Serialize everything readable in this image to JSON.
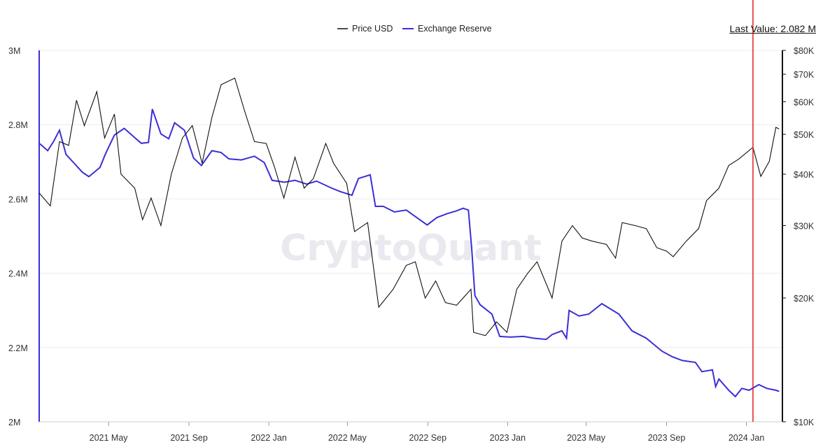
{
  "last_value_text": "Last Value: 2.082 M",
  "watermark": "CryptoQuant",
  "chart_data": {
    "type": "line",
    "x_ticks": [
      "2021 May",
      "2021 Sep",
      "2022 Jan",
      "2022 May",
      "2022 Sep",
      "2023 Jan",
      "2023 May",
      "2023 Sep",
      "2024 Jan"
    ],
    "y_left": {
      "ticks": [
        "3M",
        "2.8M",
        "2.6M",
        "2.4M",
        "2.2M",
        "2M"
      ],
      "range": [
        2000000,
        3000000
      ]
    },
    "y_right": {
      "ticks": [
        "$80K",
        "$70K",
        "$60K",
        "$50K",
        "$40K",
        "$30K",
        "$20K",
        "$10K"
      ],
      "scale": "log",
      "range": [
        10000,
        80000
      ]
    },
    "x_range": [
      "2021-01-15",
      "2024-02-25"
    ],
    "marker_date": "2024-01-11",
    "grid": "horizontal",
    "legend_position": "top-center",
    "colors": {
      "price": "#111111",
      "reserve": "#3b2fd6",
      "marker": "#e02020",
      "grid": "#ececec"
    },
    "series": [
      {
        "name": "Price USD",
        "axis": "right",
        "points": [
          [
            "2021-01-15",
            36000
          ],
          [
            "2021-02-01",
            33500
          ],
          [
            "2021-02-15",
            48000
          ],
          [
            "2021-03-01",
            47000
          ],
          [
            "2021-03-13",
            60500
          ],
          [
            "2021-03-25",
            52500
          ],
          [
            "2021-04-13",
            63500
          ],
          [
            "2021-04-25",
            49000
          ],
          [
            "2021-05-10",
            56000
          ],
          [
            "2021-05-20",
            40000
          ],
          [
            "2021-06-10",
            37000
          ],
          [
            "2021-06-22",
            31000
          ],
          [
            "2021-07-05",
            35000
          ],
          [
            "2021-07-20",
            30000
          ],
          [
            "2021-08-05",
            40000
          ],
          [
            "2021-08-22",
            49000
          ],
          [
            "2021-09-06",
            52500
          ],
          [
            "2021-09-21",
            42500
          ],
          [
            "2021-10-06",
            55000
          ],
          [
            "2021-10-20",
            66000
          ],
          [
            "2021-11-10",
            68500
          ],
          [
            "2021-11-25",
            57000
          ],
          [
            "2021-12-10",
            48000
          ],
          [
            "2021-12-28",
            47500
          ],
          [
            "2022-01-10",
            41500
          ],
          [
            "2022-01-24",
            35000
          ],
          [
            "2022-02-10",
            44000
          ],
          [
            "2022-02-24",
            37000
          ],
          [
            "2022-03-10",
            39000
          ],
          [
            "2022-03-29",
            47500
          ],
          [
            "2022-04-10",
            42500
          ],
          [
            "2022-04-30",
            38000
          ],
          [
            "2022-05-12",
            29000
          ],
          [
            "2022-06-01",
            30500
          ],
          [
            "2022-06-18",
            19000
          ],
          [
            "2022-07-10",
            21000
          ],
          [
            "2022-07-30",
            24000
          ],
          [
            "2022-08-13",
            24500
          ],
          [
            "2022-08-28",
            20000
          ],
          [
            "2022-09-13",
            22000
          ],
          [
            "2022-09-28",
            19500
          ],
          [
            "2022-10-15",
            19200
          ],
          [
            "2022-11-06",
            21000
          ],
          [
            "2022-11-10",
            16500
          ],
          [
            "2022-11-28",
            16200
          ],
          [
            "2022-12-15",
            17500
          ],
          [
            "2022-12-31",
            16500
          ],
          [
            "2023-01-15",
            21000
          ],
          [
            "2023-02-01",
            23000
          ],
          [
            "2023-02-15",
            24500
          ],
          [
            "2023-03-10",
            20000
          ],
          [
            "2023-03-25",
            27500
          ],
          [
            "2023-04-10",
            30000
          ],
          [
            "2023-04-25",
            28000
          ],
          [
            "2023-05-10",
            27500
          ],
          [
            "2023-06-01",
            27000
          ],
          [
            "2023-06-15",
            25000
          ],
          [
            "2023-06-25",
            30500
          ],
          [
            "2023-07-15",
            30000
          ],
          [
            "2023-08-01",
            29500
          ],
          [
            "2023-08-17",
            26500
          ],
          [
            "2023-09-01",
            26000
          ],
          [
            "2023-09-11",
            25200
          ],
          [
            "2023-10-01",
            27500
          ],
          [
            "2023-10-20",
            29500
          ],
          [
            "2023-11-01",
            34500
          ],
          [
            "2023-11-20",
            37000
          ],
          [
            "2023-12-05",
            42000
          ],
          [
            "2023-12-20",
            43500
          ],
          [
            "2024-01-11",
            46500
          ],
          [
            "2024-01-23",
            39500
          ],
          [
            "2024-02-05",
            43000
          ],
          [
            "2024-02-15",
            52000
          ],
          [
            "2024-02-20",
            51500
          ]
        ]
      },
      {
        "name": "Exchange Reserve",
        "axis": "left",
        "points": [
          [
            "2021-01-15",
            2.75
          ],
          [
            "2021-01-28",
            2.73
          ],
          [
            "2021-02-06",
            2.755
          ],
          [
            "2021-02-15",
            2.785
          ],
          [
            "2021-02-25",
            2.72
          ],
          [
            "2021-03-10",
            2.695
          ],
          [
            "2021-03-22",
            2.672
          ],
          [
            "2021-04-01",
            2.66
          ],
          [
            "2021-04-18",
            2.685
          ],
          [
            "2021-04-26",
            2.72
          ],
          [
            "2021-05-10",
            2.772
          ],
          [
            "2021-05-25",
            2.79
          ],
          [
            "2021-06-10",
            2.765
          ],
          [
            "2021-06-20",
            2.75
          ],
          [
            "2021-07-01",
            2.752
          ],
          [
            "2021-07-07",
            2.842
          ],
          [
            "2021-07-20",
            2.775
          ],
          [
            "2021-08-01",
            2.762
          ],
          [
            "2021-08-10",
            2.805
          ],
          [
            "2021-08-25",
            2.785
          ],
          [
            "2021-09-08",
            2.71
          ],
          [
            "2021-09-20",
            2.69
          ],
          [
            "2021-10-06",
            2.73
          ],
          [
            "2021-10-20",
            2.725
          ],
          [
            "2021-11-01",
            2.708
          ],
          [
            "2021-11-20",
            2.705
          ],
          [
            "2021-12-10",
            2.715
          ],
          [
            "2021-12-25",
            2.698
          ],
          [
            "2022-01-06",
            2.65
          ],
          [
            "2022-01-25",
            2.645
          ],
          [
            "2022-02-10",
            2.65
          ],
          [
            "2022-02-28",
            2.64
          ],
          [
            "2022-03-15",
            2.648
          ],
          [
            "2022-04-06",
            2.63
          ],
          [
            "2022-04-20",
            2.62
          ],
          [
            "2022-05-08",
            2.61
          ],
          [
            "2022-05-18",
            2.655
          ],
          [
            "2022-06-05",
            2.665
          ],
          [
            "2022-06-13",
            2.58
          ],
          [
            "2022-06-25",
            2.58
          ],
          [
            "2022-07-12",
            2.565
          ],
          [
            "2022-07-30",
            2.57
          ],
          [
            "2022-08-15",
            2.55
          ],
          [
            "2022-08-31",
            2.53
          ],
          [
            "2022-09-15",
            2.55
          ],
          [
            "2022-09-30",
            2.56
          ],
          [
            "2022-10-15",
            2.568
          ],
          [
            "2022-10-25",
            2.575
          ],
          [
            "2022-11-02",
            2.57
          ],
          [
            "2022-11-07",
            2.47
          ],
          [
            "2022-11-12",
            2.34
          ],
          [
            "2022-11-20",
            2.315
          ],
          [
            "2022-12-08",
            2.29
          ],
          [
            "2022-12-20",
            2.23
          ],
          [
            "2023-01-05",
            2.228
          ],
          [
            "2023-01-25",
            2.23
          ],
          [
            "2023-02-10",
            2.225
          ],
          [
            "2023-03-01",
            2.222
          ],
          [
            "2023-03-10",
            2.235
          ],
          [
            "2023-03-25",
            2.245
          ],
          [
            "2023-04-01",
            2.225
          ],
          [
            "2023-04-05",
            2.3
          ],
          [
            "2023-04-20",
            2.285
          ],
          [
            "2023-05-05",
            2.29
          ],
          [
            "2023-05-25",
            2.318
          ],
          [
            "2023-06-20",
            2.29
          ],
          [
            "2023-07-10",
            2.245
          ],
          [
            "2023-08-01",
            2.225
          ],
          [
            "2023-08-25",
            2.19
          ],
          [
            "2023-09-10",
            2.175
          ],
          [
            "2023-09-25",
            2.165
          ],
          [
            "2023-10-15",
            2.16
          ],
          [
            "2023-10-25",
            2.135
          ],
          [
            "2023-11-10",
            2.14
          ],
          [
            "2023-11-15",
            2.095
          ],
          [
            "2023-11-20",
            2.115
          ],
          [
            "2023-12-05",
            2.085
          ],
          [
            "2023-12-15",
            2.068
          ],
          [
            "2023-12-25",
            2.09
          ],
          [
            "2024-01-05",
            2.085
          ],
          [
            "2024-01-20",
            2.1
          ],
          [
            "2024-02-01",
            2.09
          ],
          [
            "2024-02-15",
            2.085
          ],
          [
            "2024-02-20",
            2.082
          ]
        ]
      }
    ]
  }
}
